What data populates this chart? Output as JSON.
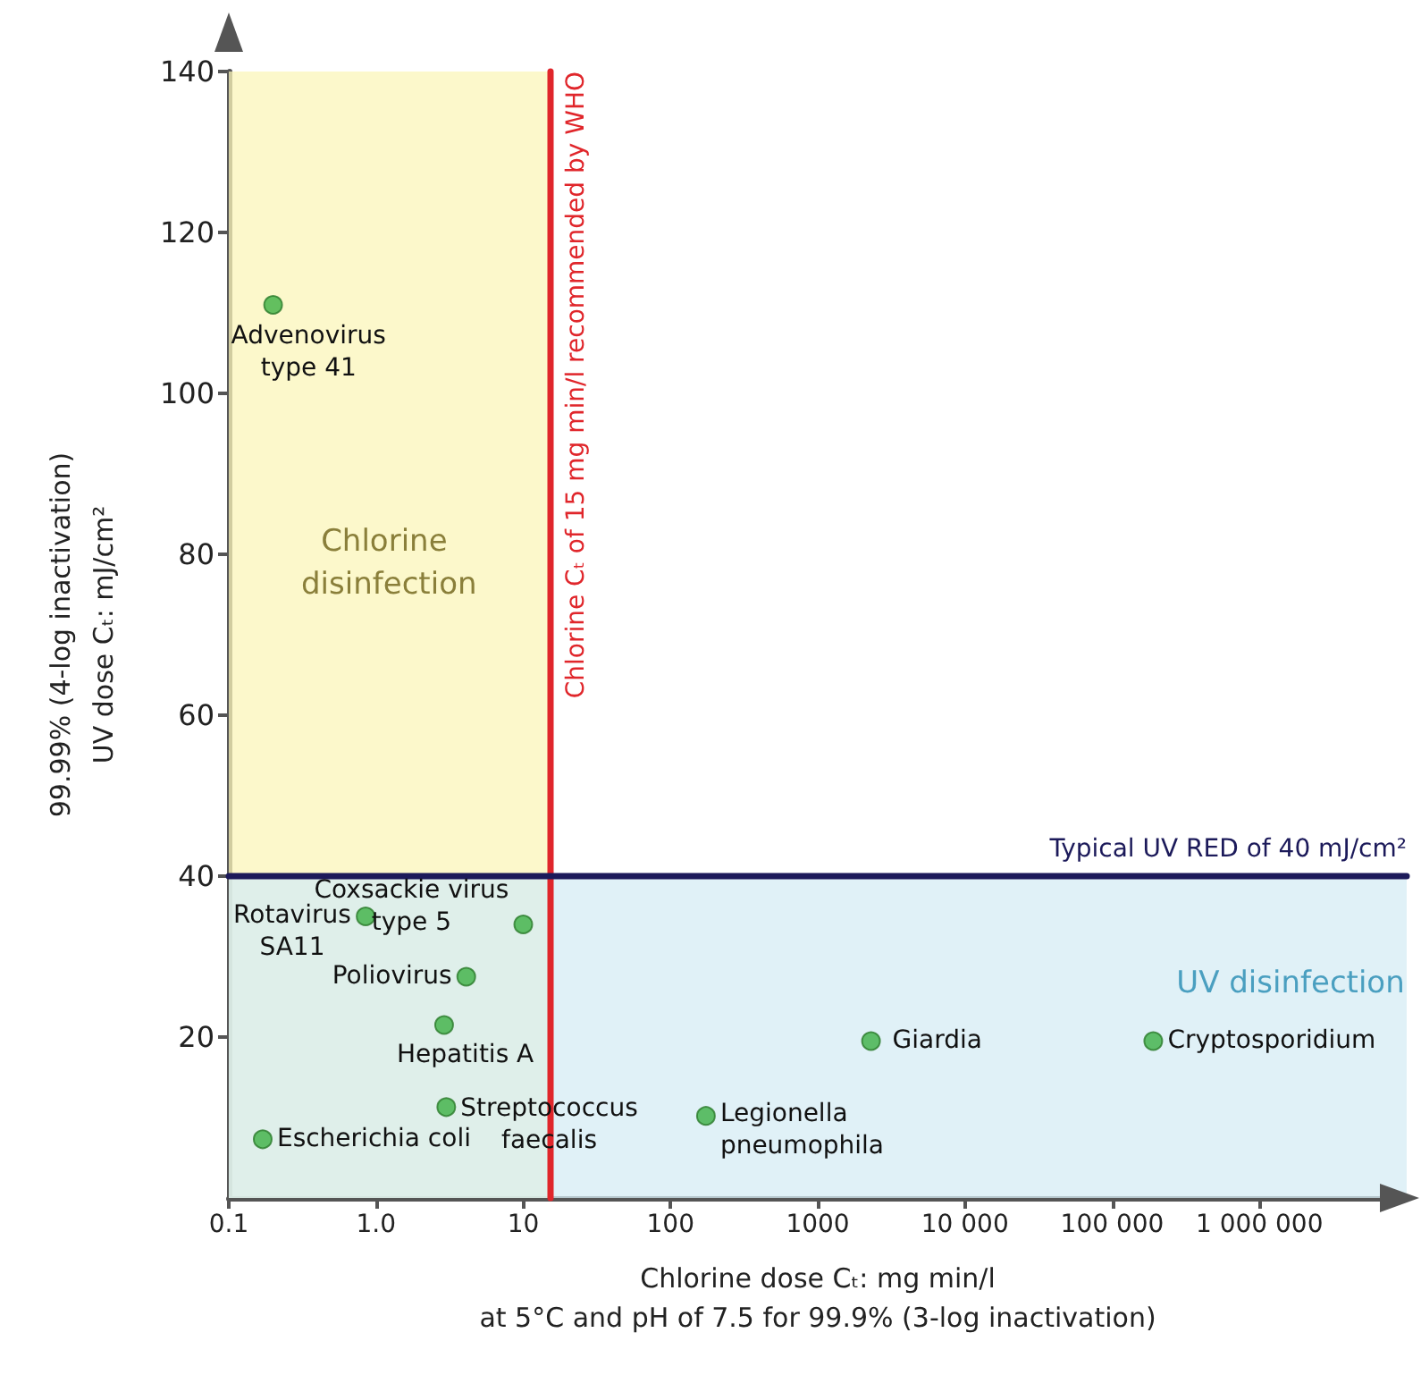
{
  "chart_data": {
    "type": "scatter",
    "xlabel": "Chlorine dose Cₜ: mg min/l\nat 5°C and pH of 7.5 for 99.9% (3-log inactivation)",
    "ylabel": "99.99% (4-log inactivation)\nUV dose Cₜ: mJ/cm²",
    "log": "x",
    "x": [
      0.2,
      0.85,
      10,
      4.1,
      2.9,
      3,
      0.17,
      174,
      2300,
      190000
    ],
    "series": [
      {
        "color": "#3cb043",
        "values": [
          111,
          35,
          34,
          27.5,
          21.5,
          11.3,
          7.3,
          10.2,
          19.5,
          19.5
        ]
      }
    ],
    "marker": "circle",
    "xlim": [
      0.1,
      10000000
    ],
    "xticks": [
      0.1,
      {
        "value": 1,
        "label": "1.0"
      },
      10,
      100,
      1000,
      {
        "value": 10000,
        "label": "10 000"
      },
      {
        "value": 100000,
        "label": "100 000"
      },
      {
        "value": 1000000,
        "label": "1 000 000"
      }
    ],
    "ylim": [
      0,
      140
    ],
    "yticks": [
      20,
      40,
      60,
      80,
      100,
      120,
      140
    ],
    "grid": false,
    "ref_lines": [
      {
        "axis": "x",
        "value": 15,
        "label": "Chlorine Cₜ of 15 mg min/l recommended by WHO",
        "color": "#e0262b"
      },
      {
        "axis": "y",
        "value": 40,
        "label": "Typical UV RED of 40 mJ/cm²",
        "color": "#1c1a5a"
      }
    ],
    "bands": [
      {
        "axis": "x",
        "from": 0.1,
        "to": 15,
        "label": "Chlorine disinfection",
        "color": "#fbf5b9"
      },
      {
        "axis": "y",
        "from": 0,
        "to": 40,
        "label": "UV disinfection",
        "color": "#d6ecf4"
      }
    ],
    "annotations": [
      {
        "text": "Advenovirus\ntype 41",
        "x": 0.2,
        "y": 111
      },
      {
        "text": "Rotavirus\nSA11",
        "x": 0.85,
        "y": 35
      },
      {
        "text": "Coxsackie virus\ntype 5",
        "x": 10,
        "y": 34
      },
      {
        "text": "Poliovirus",
        "x": 4.1,
        "y": 27.5
      },
      {
        "text": "Hepatitis A",
        "x": 2.9,
        "y": 21.5
      },
      {
        "text": "Streptococcus\nfaecalis",
        "x": 3,
        "y": 11.3
      },
      {
        "text": "Escherichia coli",
        "x": 0.17,
        "y": 7.3
      },
      {
        "text": "Legionella\npneumophila",
        "x": 174,
        "y": 10.2
      },
      {
        "text": "Giardia",
        "x": 2300,
        "y": 19.5
      },
      {
        "text": "Cryptosporidium",
        "x": 190000,
        "y": 19.5
      }
    ]
  }
}
